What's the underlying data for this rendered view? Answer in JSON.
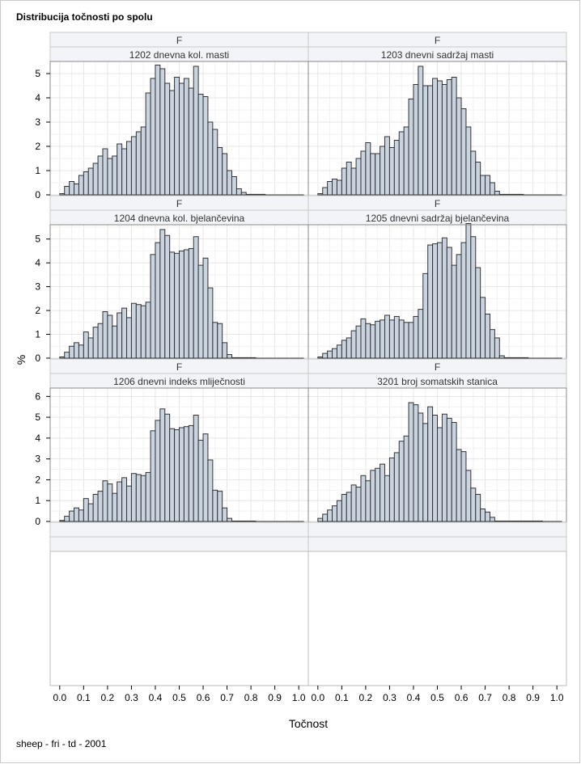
{
  "title": "Distribucija točnosti po spolu",
  "footnote": "sheep - fri - td - 2001",
  "chart_data": {
    "type": "bar",
    "subtype": "histogram-panel",
    "xlabel": "Točnost",
    "ylabel": "%",
    "xlim": [
      -0.04,
      1.04
    ],
    "xticks": [
      "0.0",
      "0.1",
      "0.2",
      "0.3",
      "0.4",
      "0.5",
      "0.6",
      "0.7",
      "0.8",
      "0.9",
      "1.0"
    ],
    "bin_width": 0.02,
    "bin_start": 0.0,
    "grid": true,
    "bar_fill": "#cad4e1",
    "bar_stroke": "#333333",
    "grid_color": "#e6e6e6",
    "header_fill": "#f2f4f8",
    "empty_row_headers": 2,
    "rows": [
      {
        "ylim": [
          0,
          5.5
        ],
        "yticks": [
          0,
          1,
          2,
          3,
          4,
          5
        ],
        "panels": [
          {
            "header1": "F",
            "header2": "1202 dnevna kol. masti",
            "values": [
              0.05,
              0.35,
              0.55,
              0.45,
              0.8,
              0.95,
              1.1,
              1.3,
              1.6,
              1.9,
              1.5,
              1.6,
              2.1,
              1.9,
              2.2,
              2.4,
              2.6,
              2.8,
              4.2,
              4.8,
              5.35,
              5.2,
              4.6,
              4.3,
              4.85,
              4.6,
              4.8,
              4.4,
              5.3,
              4.15,
              4.05,
              3.0,
              2.7,
              1.95,
              1.7,
              1.0,
              0.75,
              0.25,
              0.1,
              0.02,
              0.02,
              0.02,
              0.02,
              0.0,
              0.0,
              0.0,
              0.0,
              0.0,
              0.0,
              0.0,
              0.0
            ]
          },
          {
            "header1": "F",
            "header2": "1203 dnevni sadržaj masti",
            "values": [
              0.05,
              0.3,
              0.55,
              0.65,
              0.6,
              1.1,
              1.35,
              1.1,
              1.5,
              1.8,
              2.15,
              1.7,
              1.7,
              2.0,
              2.4,
              1.95,
              2.25,
              2.6,
              2.8,
              3.95,
              4.55,
              5.3,
              4.5,
              4.5,
              4.8,
              4.7,
              4.55,
              4.75,
              4.85,
              4.0,
              3.55,
              2.8,
              1.8,
              1.35,
              0.8,
              0.8,
              0.5,
              0.15,
              0.02,
              0.02,
              0.02,
              0.02,
              0.02,
              0.0,
              0.0,
              0.0,
              0.0,
              0.0,
              0.0,
              0.0,
              0.0
            ]
          }
        ]
      },
      {
        "ylim": [
          0,
          5.6
        ],
        "yticks": [
          0,
          1,
          2,
          3,
          4,
          5
        ],
        "panels": [
          {
            "header1": "F",
            "header2": "1204 dnevna kol. bjelančevina",
            "values": [
              0.05,
              0.25,
              0.5,
              0.65,
              0.55,
              1.1,
              0.85,
              1.3,
              1.45,
              1.95,
              1.8,
              1.35,
              1.9,
              2.1,
              1.7,
              2.3,
              2.25,
              2.2,
              2.35,
              4.35,
              4.85,
              5.4,
              5.15,
              4.45,
              4.4,
              4.5,
              4.55,
              4.6,
              5.1,
              3.9,
              4.2,
              2.95,
              1.5,
              1.45,
              0.65,
              0.15,
              0.02,
              0.02,
              0.02,
              0.02,
              0.02,
              0.0,
              0.0,
              0.0,
              0.0,
              0.0,
              0.0,
              0.0,
              0.0,
              0.0,
              0.0
            ]
          },
          {
            "header1": "F",
            "header2": "1205 dnevni sadržaj bjelančevina",
            "values": [
              0.05,
              0.2,
              0.3,
              0.4,
              0.55,
              0.75,
              0.85,
              1.15,
              1.35,
              1.65,
              1.45,
              1.4,
              1.55,
              1.6,
              1.8,
              1.6,
              1.75,
              1.6,
              1.5,
              1.5,
              1.75,
              2.05,
              3.55,
              4.75,
              4.8,
              4.85,
              5.05,
              4.65,
              3.9,
              4.35,
              4.85,
              5.65,
              5.1,
              3.8,
              2.55,
              1.85,
              1.2,
              0.85,
              0.1,
              0.02,
              0.02,
              0.02,
              0.02,
              0.02,
              0.0,
              0.0,
              0.0,
              0.0,
              0.0,
              0.0,
              0.0
            ]
          }
        ]
      },
      {
        "ylim": [
          0,
          6.4
        ],
        "yticks": [
          0,
          1,
          2,
          3,
          4,
          5,
          6
        ],
        "panels": [
          {
            "header1": "F",
            "header2": "1206 dnevni indeks mliječnosti",
            "values": [
              0.05,
              0.25,
              0.5,
              0.65,
              0.55,
              1.1,
              0.85,
              1.3,
              1.45,
              1.95,
              1.8,
              1.35,
              1.9,
              2.1,
              1.7,
              2.3,
              2.25,
              2.2,
              2.35,
              4.35,
              4.85,
              5.4,
              5.15,
              4.45,
              4.4,
              4.5,
              4.55,
              4.6,
              5.1,
              3.9,
              4.2,
              2.95,
              1.5,
              1.45,
              0.65,
              0.15,
              0.02,
              0.02,
              0.02,
              0.02,
              0.02,
              0.0,
              0.0,
              0.0,
              0.0,
              0.0,
              0.0,
              0.0,
              0.0,
              0.0,
              0.0
            ]
          },
          {
            "header1": "F",
            "header2": "3201 broj somatskih stanica",
            "values": [
              0.15,
              0.35,
              0.55,
              0.75,
              1.0,
              1.3,
              1.4,
              1.75,
              1.65,
              2.2,
              1.95,
              2.45,
              2.55,
              2.75,
              2.2,
              3.05,
              3.3,
              3.85,
              4.1,
              5.7,
              5.6,
              5.2,
              4.7,
              5.5,
              5.1,
              4.5,
              5.15,
              4.95,
              4.75,
              3.45,
              3.35,
              2.45,
              1.6,
              1.3,
              0.6,
              0.45,
              0.2,
              0.02,
              0.02,
              0.02,
              0.02,
              0.02,
              0.02,
              0.02,
              0.02,
              0.02,
              0.02,
              0.0,
              0.0,
              0.0,
              0.0
            ]
          }
        ]
      }
    ]
  }
}
